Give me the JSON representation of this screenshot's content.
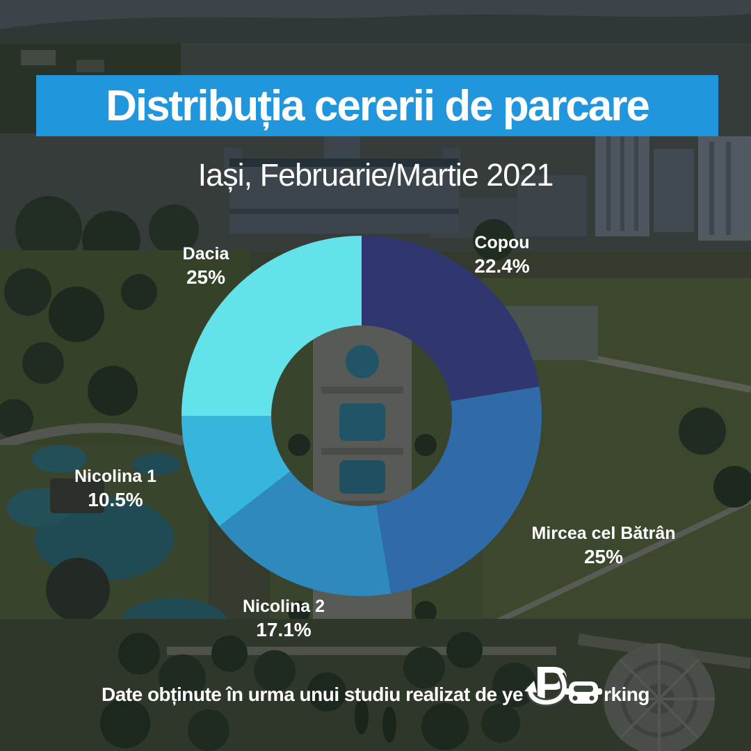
{
  "title": {
    "text": "Distribuția cererii de parcare"
  },
  "subtitle": {
    "text": "Iași, Februarie/Martie 2021"
  },
  "footer": {
    "prefix": "Date obținute în urma unui studiu realizat de ye",
    "brand_p": "P",
    "brand_suffix": "rking"
  },
  "colors": {
    "banner_blue": "#2196dc",
    "label_text": "#ffffff"
  },
  "chart_data": {
    "type": "pie",
    "variant": "donut",
    "title": "Distribuția cererii de parcare",
    "subtitle": "Iași, Februarie/Martie 2021",
    "start_angle_deg_from_top_clockwise": 0,
    "legend_position": "labels-around-chart",
    "segments": [
      {
        "label": "Copou",
        "value": 22.4,
        "pct_label": "22.4%",
        "color": "#30366f"
      },
      {
        "label": "Mircea cel Bătrân",
        "value": 25,
        "pct_label": "25%",
        "color": "#2f6ba9"
      },
      {
        "label": "Nicolina 2",
        "value": 17.1,
        "pct_label": "17.1%",
        "color": "#2e8abd"
      },
      {
        "label": "Nicolina 1",
        "value": 10.5,
        "pct_label": "10.5%",
        "color": "#38b5dc"
      },
      {
        "label": "Dacia",
        "value": 25,
        "pct_label": "25%",
        "color": "#64e2e9"
      }
    ]
  }
}
